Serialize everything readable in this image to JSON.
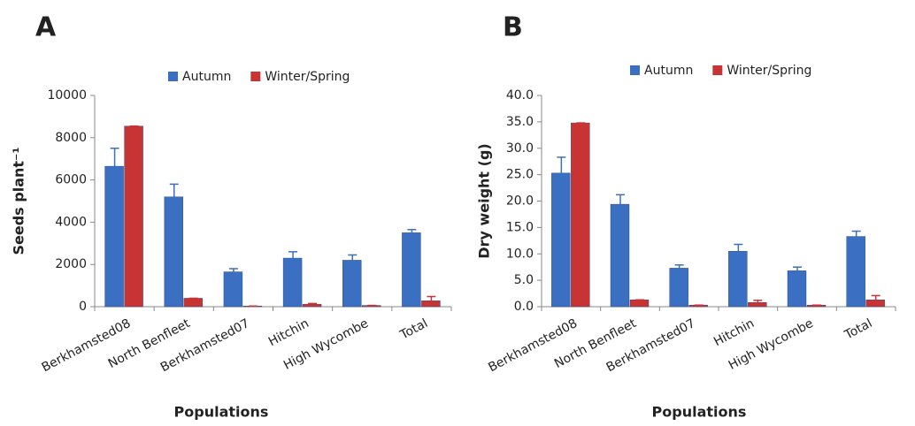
{
  "chart_data": [
    {
      "type": "bar",
      "label": "A",
      "ylabel": "Seeds plant⁻¹",
      "xlabel": "Populations",
      "categories": [
        "Berkhamsted08",
        "North Benfleet",
        "Berkhamsted07",
        "Hitchin",
        "High Wycombe",
        "Total"
      ],
      "series": [
        {
          "name": "Autumn",
          "color": "#3b6fc2",
          "values": [
            6650,
            5200,
            1650,
            2300,
            2200,
            3500
          ],
          "errors": [
            850,
            600,
            150,
            300,
            250,
            150
          ]
        },
        {
          "name": "Winter/Spring",
          "color": "#c83434",
          "values": [
            8550,
            400,
            30,
            120,
            60,
            280
          ],
          "errors": [
            0,
            0,
            0,
            30,
            0,
            200
          ]
        }
      ],
      "ylim": [
        0,
        10000
      ],
      "yticks": [
        0,
        2000,
        4000,
        6000,
        8000,
        10000
      ]
    },
    {
      "type": "bar",
      "label": "B",
      "ylabel": "Dry weight (g)",
      "xlabel": "Populations",
      "categories": [
        "Berkhamsted08",
        "North Benfleet",
        "Berkhamsted07",
        "Hitchin",
        "High Wycombe",
        "Total"
      ],
      "series": [
        {
          "name": "Autumn",
          "color": "#3b6fc2",
          "values": [
            25.3,
            19.4,
            7.3,
            10.5,
            6.8,
            13.3
          ],
          "errors": [
            3,
            1.8,
            0.6,
            1.3,
            0.7,
            1.0
          ]
        },
        {
          "name": "Winter/Spring",
          "color": "#c83434",
          "values": [
            34.8,
            1.3,
            0.3,
            0.8,
            0.3,
            1.3
          ],
          "errors": [
            0,
            0,
            0,
            0.4,
            0,
            0.8
          ]
        }
      ],
      "ylim": [
        0,
        40
      ],
      "yticks": [
        {
          "value": 0,
          "label": "0.0"
        },
        {
          "value": 5,
          "label": "5.0"
        },
        {
          "value": 10,
          "label": "10.0"
        },
        {
          "value": 15,
          "label": "15.0"
        },
        {
          "value": 20,
          "label": "20.0"
        },
        {
          "value": 25,
          "label": "25.0"
        },
        {
          "value": 30,
          "label": "30.0"
        },
        {
          "value": 35,
          "label": "35.0"
        },
        {
          "value": 40,
          "label": "40.0"
        }
      ]
    }
  ]
}
